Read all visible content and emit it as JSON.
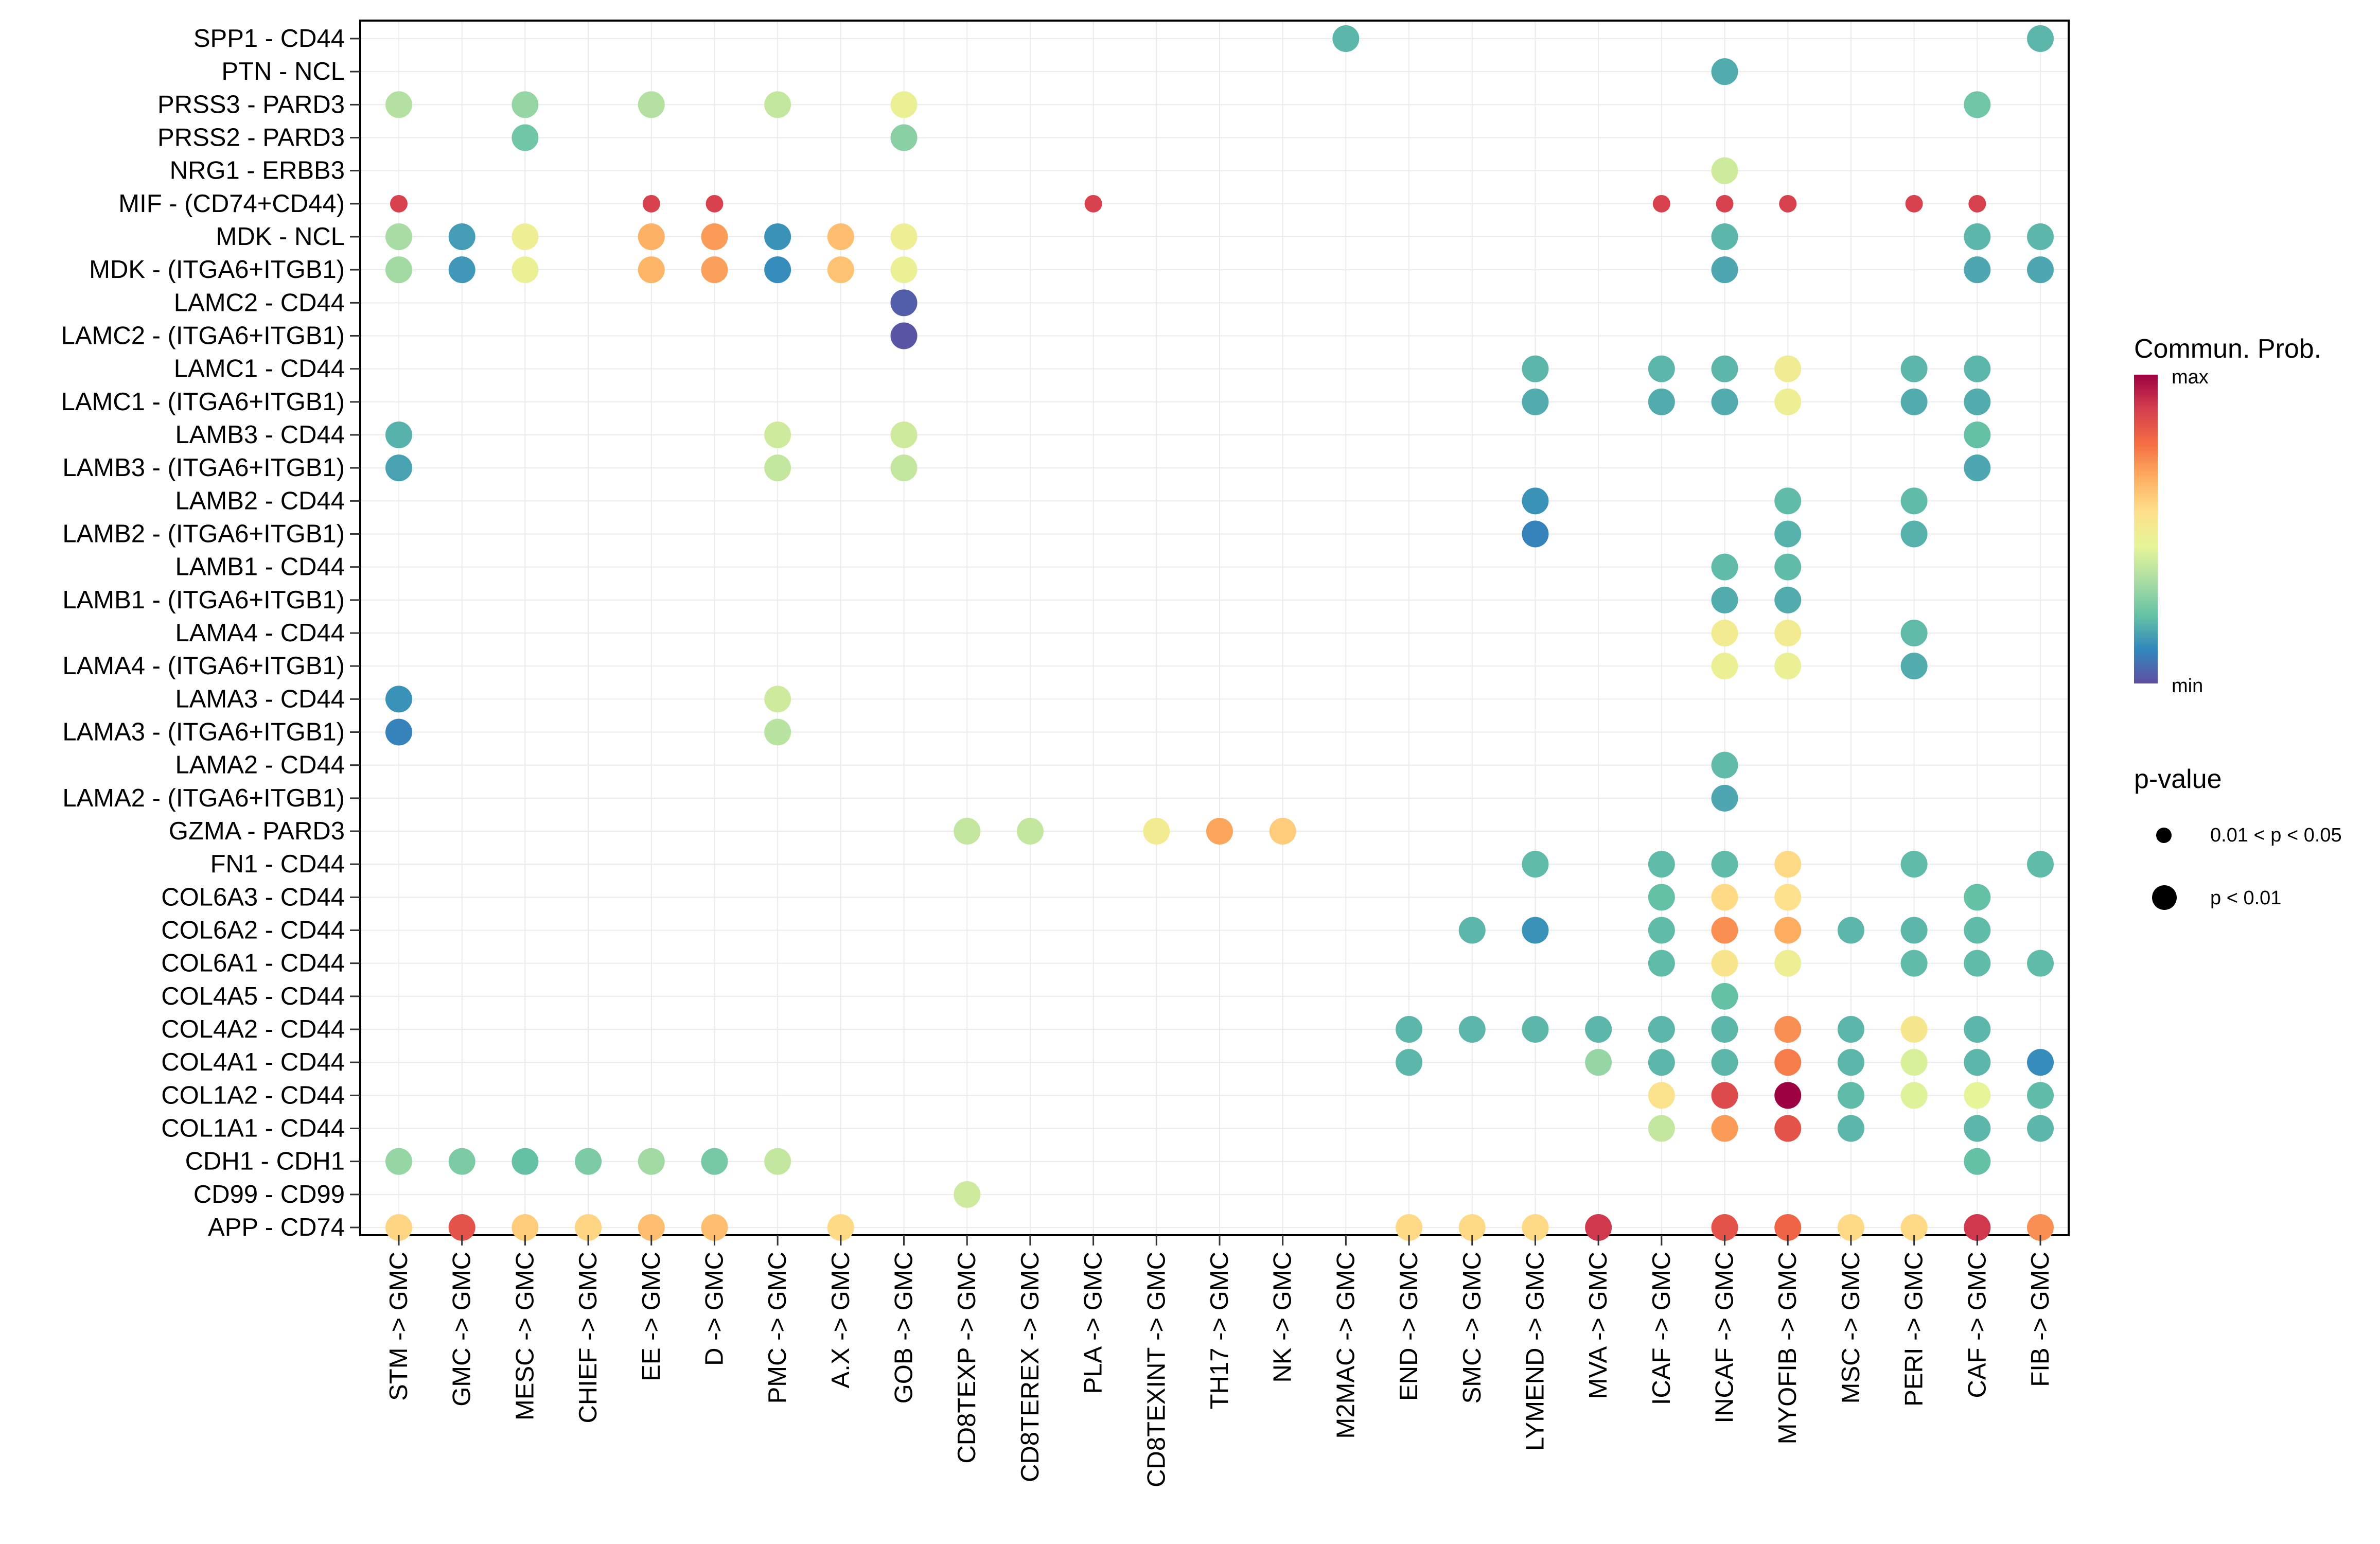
{
  "chart_data": {
    "type": "dot",
    "colorscale": [
      "#5E4FA2",
      "#3288BD",
      "#66C2A5",
      "#ABDDA4",
      "#E6F598",
      "#FEE08B",
      "#FDAE61",
      "#F46D43",
      "#D53E4F",
      "#9E0142"
    ],
    "gridline_color": "#ebebeb",
    "x_categories": [
      "STM -> GMC",
      "GMC -> GMC",
      "MESC -> GMC",
      "CHIEF -> GMC",
      "EE -> GMC",
      "D -> GMC",
      "PMC -> GMC",
      "A.X -> GMC",
      "GOB -> GMC",
      "CD8TEXP -> GMC",
      "CD8TEREX -> GMC",
      "PLA -> GMC",
      "CD8TEXINT -> GMC",
      "TH17 -> GMC",
      "NK -> GMC",
      "M2MAC -> GMC",
      "END -> GMC",
      "SMC -> GMC",
      "LYMEND -> GMC",
      "MVA -> GMC",
      "ICAF -> GMC",
      "INCAF -> GMC",
      "MYOFIB -> GMC",
      "MSC -> GMC",
      "PERI -> GMC",
      "CAF -> GMC",
      "FIB -> GMC"
    ],
    "y_categories": [
      "SPP1 - CD44",
      "PTN - NCL",
      "PRSS3 - PARD3",
      "PRSS2 - PARD3",
      "NRG1 - ERBB3",
      "MIF - (CD74+CD44)",
      "MDK - NCL",
      "MDK - (ITGA6+ITGB1)",
      "LAMC2 - CD44",
      "LAMC2 - (ITGA6+ITGB1)",
      "LAMC1 - CD44",
      "LAMC1 - (ITGA6+ITGB1)",
      "LAMB3 - CD44",
      "LAMB3 - (ITGA6+ITGB1)",
      "LAMB2 - CD44",
      "LAMB2 - (ITGA6+ITGB1)",
      "LAMB1 - CD44",
      "LAMB1 - (ITGA6+ITGB1)",
      "LAMA4 - CD44",
      "LAMA4 - (ITGA6+ITGB1)",
      "LAMA3 - CD44",
      "LAMA3 - (ITGA6+ITGB1)",
      "LAMA2 - CD44",
      "LAMA2 - (ITGA6+ITGB1)",
      "GZMA - PARD3",
      "FN1 - CD44",
      "COL6A3 - CD44",
      "COL6A2 - CD44",
      "COL6A1 - CD44",
      "COL4A5 - CD44",
      "COL4A2 - CD44",
      "COL4A1 - CD44",
      "COL1A2 - CD44",
      "COL1A1 - CD44",
      "CDH1 - CDH1",
      "CD99 - CD99",
      "APP - CD74"
    ],
    "points": [
      [
        "SPP1 - CD44",
        "M2MAC -> GMC",
        0.2,
        2
      ],
      [
        "SPP1 - CD44",
        "FIB -> GMC",
        0.2,
        2
      ],
      [
        "PTN - NCL",
        "INCAF -> GMC",
        0.18,
        2
      ],
      [
        "PRSS3 - PARD3",
        "STM -> GMC",
        0.35,
        2
      ],
      [
        "PRSS3 - PARD3",
        "MESC -> GMC",
        0.3,
        2
      ],
      [
        "PRSS3 - PARD3",
        "EE -> GMC",
        0.35,
        2
      ],
      [
        "PRSS3 - PARD3",
        "PMC -> GMC",
        0.38,
        2
      ],
      [
        "PRSS3 - PARD3",
        "GOB -> GMC",
        0.47,
        2
      ],
      [
        "PRSS3 - PARD3",
        "CAF -> GMC",
        0.24,
        2
      ],
      [
        "PRSS2 - PARD3",
        "MESC -> GMC",
        0.24,
        2
      ],
      [
        "PRSS2 - PARD3",
        "GOB -> GMC",
        0.28,
        2
      ],
      [
        "NRG1 - ERBB3",
        "INCAF -> GMC",
        0.4,
        2
      ],
      [
        "MIF - (CD74+CD44)",
        "STM -> GMC",
        0.88,
        1
      ],
      [
        "MIF - (CD74+CD44)",
        "EE -> GMC",
        0.88,
        1
      ],
      [
        "MIF - (CD74+CD44)",
        "D -> GMC",
        0.88,
        1
      ],
      [
        "MIF - (CD74+CD44)",
        "PLA -> GMC",
        0.88,
        1
      ],
      [
        "MIF - (CD74+CD44)",
        "ICAF -> GMC",
        0.88,
        1
      ],
      [
        "MIF - (CD74+CD44)",
        "INCAF -> GMC",
        0.88,
        1
      ],
      [
        "MIF - (CD74+CD44)",
        "MYOFIB -> GMC",
        0.88,
        1
      ],
      [
        "MIF - (CD74+CD44)",
        "PERI -> GMC",
        0.88,
        1
      ],
      [
        "MIF - (CD74+CD44)",
        "CAF -> GMC",
        0.88,
        1
      ],
      [
        "MDK - NCL",
        "STM -> GMC",
        0.33,
        2
      ],
      [
        "MDK - NCL",
        "GMC -> GMC",
        0.15,
        2
      ],
      [
        "MDK - NCL",
        "MESC -> GMC",
        0.48,
        2
      ],
      [
        "MDK - NCL",
        "EE -> GMC",
        0.66,
        2
      ],
      [
        "MDK - NCL",
        "D -> GMC",
        0.7,
        2
      ],
      [
        "MDK - NCL",
        "PMC -> GMC",
        0.13,
        2
      ],
      [
        "MDK - NCL",
        "A.X -> GMC",
        0.63,
        2
      ],
      [
        "MDK - NCL",
        "GOB -> GMC",
        0.48,
        2
      ],
      [
        "MDK - NCL",
        "INCAF -> GMC",
        0.2,
        2
      ],
      [
        "MDK - NCL",
        "CAF -> GMC",
        0.2,
        2
      ],
      [
        "MDK - NCL",
        "FIB -> GMC",
        0.2,
        2
      ],
      [
        "MDK - (ITGA6+ITGB1)",
        "STM -> GMC",
        0.32,
        2
      ],
      [
        "MDK - (ITGA6+ITGB1)",
        "GMC -> GMC",
        0.14,
        2
      ],
      [
        "MDK - (ITGA6+ITGB1)",
        "MESC -> GMC",
        0.47,
        2
      ],
      [
        "MDK - (ITGA6+ITGB1)",
        "EE -> GMC",
        0.65,
        2
      ],
      [
        "MDK - (ITGA6+ITGB1)",
        "D -> GMC",
        0.69,
        2
      ],
      [
        "MDK - (ITGA6+ITGB1)",
        "PMC -> GMC",
        0.12,
        2
      ],
      [
        "MDK - (ITGA6+ITGB1)",
        "A.X -> GMC",
        0.62,
        2
      ],
      [
        "MDK - (ITGA6+ITGB1)",
        "GOB -> GMC",
        0.47,
        2
      ],
      [
        "MDK - (ITGA6+ITGB1)",
        "INCAF -> GMC",
        0.17,
        2
      ],
      [
        "MDK - (ITGA6+ITGB1)",
        "CAF -> GMC",
        0.17,
        2
      ],
      [
        "MDK - (ITGA6+ITGB1)",
        "FIB -> GMC",
        0.17,
        2
      ],
      [
        "LAMC2 - CD44",
        "GOB -> GMC",
        0.03,
        2
      ],
      [
        "LAMC2 - (ITGA6+ITGB1)",
        "GOB -> GMC",
        0.01,
        2
      ],
      [
        "LAMC1 - CD44",
        "LYMEND -> GMC",
        0.2,
        2
      ],
      [
        "LAMC1 - CD44",
        "ICAF -> GMC",
        0.2,
        2
      ],
      [
        "LAMC1 - CD44",
        "INCAF -> GMC",
        0.2,
        2
      ],
      [
        "LAMC1 - CD44",
        "MYOFIB -> GMC",
        0.49,
        2
      ],
      [
        "LAMC1 - CD44",
        "PERI -> GMC",
        0.2,
        2
      ],
      [
        "LAMC1 - CD44",
        "CAF -> GMC",
        0.2,
        2
      ],
      [
        "LAMC1 - (ITGA6+ITGB1)",
        "LYMEND -> GMC",
        0.18,
        2
      ],
      [
        "LAMC1 - (ITGA6+ITGB1)",
        "ICAF -> GMC",
        0.18,
        2
      ],
      [
        "LAMC1 - (ITGA6+ITGB1)",
        "INCAF -> GMC",
        0.18,
        2
      ],
      [
        "LAMC1 - (ITGA6+ITGB1)",
        "MYOFIB -> GMC",
        0.48,
        2
      ],
      [
        "LAMC1 - (ITGA6+ITGB1)",
        "PERI -> GMC",
        0.18,
        2
      ],
      [
        "LAMC1 - (ITGA6+ITGB1)",
        "CAF -> GMC",
        0.18,
        2
      ],
      [
        "LAMB3 - CD44",
        "STM -> GMC",
        0.19,
        2
      ],
      [
        "LAMB3 - CD44",
        "PMC -> GMC",
        0.4,
        2
      ],
      [
        "LAMB3 - CD44",
        "GOB -> GMC",
        0.4,
        2
      ],
      [
        "LAMB3 - CD44",
        "CAF -> GMC",
        0.22,
        2
      ],
      [
        "LAMB3 - (ITGA6+ITGB1)",
        "STM -> GMC",
        0.16,
        2
      ],
      [
        "LAMB3 - (ITGA6+ITGB1)",
        "PMC -> GMC",
        0.38,
        2
      ],
      [
        "LAMB3 - (ITGA6+ITGB1)",
        "GOB -> GMC",
        0.38,
        2
      ],
      [
        "LAMB3 - (ITGA6+ITGB1)",
        "CAF -> GMC",
        0.17,
        2
      ],
      [
        "LAMB2 - CD44",
        "LYMEND -> GMC",
        0.13,
        2
      ],
      [
        "LAMB2 - CD44",
        "MYOFIB -> GMC",
        0.21,
        2
      ],
      [
        "LAMB2 - CD44",
        "PERI -> GMC",
        0.21,
        2
      ],
      [
        "LAMB2 - (ITGA6+ITGB1)",
        "LYMEND -> GMC",
        0.1,
        2
      ],
      [
        "LAMB2 - (ITGA6+ITGB1)",
        "MYOFIB -> GMC",
        0.19,
        2
      ],
      [
        "LAMB2 - (ITGA6+ITGB1)",
        "PERI -> GMC",
        0.19,
        2
      ],
      [
        "LAMB1 - CD44",
        "INCAF -> GMC",
        0.21,
        2
      ],
      [
        "LAMB1 - CD44",
        "MYOFIB -> GMC",
        0.21,
        2
      ],
      [
        "LAMB1 - (ITGA6+ITGB1)",
        "INCAF -> GMC",
        0.18,
        2
      ],
      [
        "LAMB1 - (ITGA6+ITGB1)",
        "MYOFIB -> GMC",
        0.18,
        2
      ],
      [
        "LAMA4 - CD44",
        "INCAF -> GMC",
        0.5,
        2
      ],
      [
        "LAMA4 - CD44",
        "MYOFIB -> GMC",
        0.5,
        2
      ],
      [
        "LAMA4 - CD44",
        "PERI -> GMC",
        0.21,
        2
      ],
      [
        "LAMA4 - (ITGA6+ITGB1)",
        "INCAF -> GMC",
        0.47,
        2
      ],
      [
        "LAMA4 - (ITGA6+ITGB1)",
        "MYOFIB -> GMC",
        0.47,
        2
      ],
      [
        "LAMA4 - (ITGA6+ITGB1)",
        "PERI -> GMC",
        0.18,
        2
      ],
      [
        "LAMA3 - CD44",
        "STM -> GMC",
        0.13,
        2
      ],
      [
        "LAMA3 - CD44",
        "PMC -> GMC",
        0.4,
        2
      ],
      [
        "LAMA3 - (ITGA6+ITGB1)",
        "STM -> GMC",
        0.1,
        2
      ],
      [
        "LAMA3 - (ITGA6+ITGB1)",
        "PMC -> GMC",
        0.36,
        2
      ],
      [
        "LAMA2 - CD44",
        "INCAF -> GMC",
        0.21,
        2
      ],
      [
        "LAMA2 - (ITGA6+ITGB1)",
        "INCAF -> GMC",
        0.17,
        2
      ],
      [
        "GZMA - PARD3",
        "CD8TEXP -> GMC",
        0.38,
        2
      ],
      [
        "GZMA - PARD3",
        "CD8TEREX -> GMC",
        0.38,
        2
      ],
      [
        "GZMA - PARD3",
        "CD8TEXINT -> GMC",
        0.5,
        2
      ],
      [
        "GZMA - PARD3",
        "TH17 -> GMC",
        0.68,
        2
      ],
      [
        "GZMA - PARD3",
        "NK -> GMC",
        0.6,
        2
      ],
      [
        "FN1 - CD44",
        "LYMEND -> GMC",
        0.21,
        2
      ],
      [
        "FN1 - CD44",
        "ICAF -> GMC",
        0.21,
        2
      ],
      [
        "FN1 - CD44",
        "INCAF -> GMC",
        0.21,
        2
      ],
      [
        "FN1 - CD44",
        "MYOFIB -> GMC",
        0.57,
        2
      ],
      [
        "FN1 - CD44",
        "PERI -> GMC",
        0.21,
        2
      ],
      [
        "FN1 - CD44",
        "FIB -> GMC",
        0.21,
        2
      ],
      [
        "COL6A3 - CD44",
        "ICAF -> GMC",
        0.22,
        2
      ],
      [
        "COL6A3 - CD44",
        "INCAF -> GMC",
        0.57,
        2
      ],
      [
        "COL6A3 - CD44",
        "MYOFIB -> GMC",
        0.55,
        2
      ],
      [
        "COL6A3 - CD44",
        "CAF -> GMC",
        0.22,
        2
      ],
      [
        "COL6A2 - CD44",
        "SMC -> GMC",
        0.2,
        2
      ],
      [
        "COL6A2 - CD44",
        "LYMEND -> GMC",
        0.13,
        2
      ],
      [
        "COL6A2 - CD44",
        "ICAF -> GMC",
        0.21,
        2
      ],
      [
        "COL6A2 - CD44",
        "INCAF -> GMC",
        0.72,
        2
      ],
      [
        "COL6A2 - CD44",
        "MYOFIB -> GMC",
        0.67,
        2
      ],
      [
        "COL6A2 - CD44",
        "MSC -> GMC",
        0.2,
        2
      ],
      [
        "COL6A2 - CD44",
        "PERI -> GMC",
        0.2,
        2
      ],
      [
        "COL6A2 - CD44",
        "CAF -> GMC",
        0.21,
        2
      ],
      [
        "COL6A1 - CD44",
        "ICAF -> GMC",
        0.21,
        2
      ],
      [
        "COL6A1 - CD44",
        "INCAF -> GMC",
        0.53,
        2
      ],
      [
        "COL6A1 - CD44",
        "MYOFIB -> GMC",
        0.48,
        2
      ],
      [
        "COL6A1 - CD44",
        "PERI -> GMC",
        0.21,
        2
      ],
      [
        "COL6A1 - CD44",
        "CAF -> GMC",
        0.21,
        2
      ],
      [
        "COL6A1 - CD44",
        "FIB -> GMC",
        0.21,
        2
      ],
      [
        "COL4A5 - CD44",
        "INCAF -> GMC",
        0.22,
        2
      ],
      [
        "COL4A2 - CD44",
        "END -> GMC",
        0.2,
        2
      ],
      [
        "COL4A2 - CD44",
        "SMC -> GMC",
        0.2,
        2
      ],
      [
        "COL4A2 - CD44",
        "LYMEND -> GMC",
        0.2,
        2
      ],
      [
        "COL4A2 - CD44",
        "MVA -> GMC",
        0.2,
        2
      ],
      [
        "COL4A2 - CD44",
        "ICAF -> GMC",
        0.2,
        2
      ],
      [
        "COL4A2 - CD44",
        "INCAF -> GMC",
        0.2,
        2
      ],
      [
        "COL4A2 - CD44",
        "MYOFIB -> GMC",
        0.72,
        2
      ],
      [
        "COL4A2 - CD44",
        "MSC -> GMC",
        0.2,
        2
      ],
      [
        "COL4A2 - CD44",
        "PERI -> GMC",
        0.52,
        2
      ],
      [
        "COL4A2 - CD44",
        "CAF -> GMC",
        0.2,
        2
      ],
      [
        "COL4A1 - CD44",
        "END -> GMC",
        0.2,
        2
      ],
      [
        "COL4A1 - CD44",
        "MVA -> GMC",
        0.3,
        2
      ],
      [
        "COL4A1 - CD44",
        "ICAF -> GMC",
        0.2,
        2
      ],
      [
        "COL4A1 - CD44",
        "INCAF -> GMC",
        0.2,
        2
      ],
      [
        "COL4A1 - CD44",
        "MYOFIB -> GMC",
        0.75,
        2
      ],
      [
        "COL4A1 - CD44",
        "MSC -> GMC",
        0.2,
        2
      ],
      [
        "COL4A1 - CD44",
        "PERI -> GMC",
        0.42,
        2
      ],
      [
        "COL4A1 - CD44",
        "CAF -> GMC",
        0.2,
        2
      ],
      [
        "COL4A1 - CD44",
        "FIB -> GMC",
        0.12,
        2
      ],
      [
        "COL1A2 - CD44",
        "ICAF -> GMC",
        0.54,
        2
      ],
      [
        "COL1A2 - CD44",
        "INCAF -> GMC",
        0.86,
        2
      ],
      [
        "COL1A2 - CD44",
        "MYOFIB -> GMC",
        1.0,
        2
      ],
      [
        "COL1A2 - CD44",
        "MSC -> GMC",
        0.21,
        2
      ],
      [
        "COL1A2 - CD44",
        "PERI -> GMC",
        0.43,
        2
      ],
      [
        "COL1A2 - CD44",
        "CAF -> GMC",
        0.45,
        2
      ],
      [
        "COL1A2 - CD44",
        "FIB -> GMC",
        0.21,
        2
      ],
      [
        "COL1A1 - CD44",
        "ICAF -> GMC",
        0.38,
        2
      ],
      [
        "COL1A1 - CD44",
        "INCAF -> GMC",
        0.7,
        2
      ],
      [
        "COL1A1 - CD44",
        "MYOFIB -> GMC",
        0.84,
        2
      ],
      [
        "COL1A1 - CD44",
        "MSC -> GMC",
        0.2,
        2
      ],
      [
        "COL1A1 - CD44",
        "CAF -> GMC",
        0.2,
        2
      ],
      [
        "COL1A1 - CD44",
        "FIB -> GMC",
        0.2,
        2
      ],
      [
        "CDH1 - CDH1",
        "STM -> GMC",
        0.3,
        2
      ],
      [
        "CDH1 - CDH1",
        "GMC -> GMC",
        0.26,
        2
      ],
      [
        "CDH1 - CDH1",
        "MESC -> GMC",
        0.22,
        2
      ],
      [
        "CDH1 - CDH1",
        "CHIEF -> GMC",
        0.26,
        2
      ],
      [
        "CDH1 - CDH1",
        "EE -> GMC",
        0.32,
        2
      ],
      [
        "CDH1 - CDH1",
        "D -> GMC",
        0.25,
        2
      ],
      [
        "CDH1 - CDH1",
        "PMC -> GMC",
        0.38,
        2
      ],
      [
        "CDH1 - CDH1",
        "CAF -> GMC",
        0.22,
        2
      ],
      [
        "CD99 - CD99",
        "CD8TEXP -> GMC",
        0.4,
        2
      ],
      [
        "APP - CD74",
        "STM -> GMC",
        0.58,
        2
      ],
      [
        "APP - CD74",
        "GMC -> GMC",
        0.84,
        2
      ],
      [
        "APP - CD74",
        "MESC -> GMC",
        0.6,
        2
      ],
      [
        "APP - CD74",
        "CHIEF -> GMC",
        0.58,
        2
      ],
      [
        "APP - CD74",
        "EE -> GMC",
        0.63,
        2
      ],
      [
        "APP - CD74",
        "D -> GMC",
        0.63,
        2
      ],
      [
        "APP - CD74",
        "A.X -> GMC",
        0.57,
        2
      ],
      [
        "APP - CD74",
        "END -> GMC",
        0.57,
        2
      ],
      [
        "APP - CD74",
        "SMC -> GMC",
        0.57,
        2
      ],
      [
        "APP - CD74",
        "LYMEND -> GMC",
        0.57,
        2
      ],
      [
        "APP - CD74",
        "MVA -> GMC",
        0.9,
        2
      ],
      [
        "APP - CD74",
        "INCAF -> GMC",
        0.84,
        2
      ],
      [
        "APP - CD74",
        "MYOFIB -> GMC",
        0.8,
        2
      ],
      [
        "APP - CD74",
        "MSC -> GMC",
        0.57,
        2
      ],
      [
        "APP - CD74",
        "PERI -> GMC",
        0.57,
        2
      ],
      [
        "APP - CD74",
        "CAF -> GMC",
        0.9,
        2
      ],
      [
        "APP - CD74",
        "FIB -> GMC",
        0.72,
        2
      ]
    ]
  },
  "legend": {
    "color_title": "Commun. Prob.",
    "max_label": "max",
    "min_label": "min",
    "pvalue_title": "p-value",
    "pvalue_small": "0.01 < p < 0.05",
    "pvalue_large": "p < 0.01"
  }
}
